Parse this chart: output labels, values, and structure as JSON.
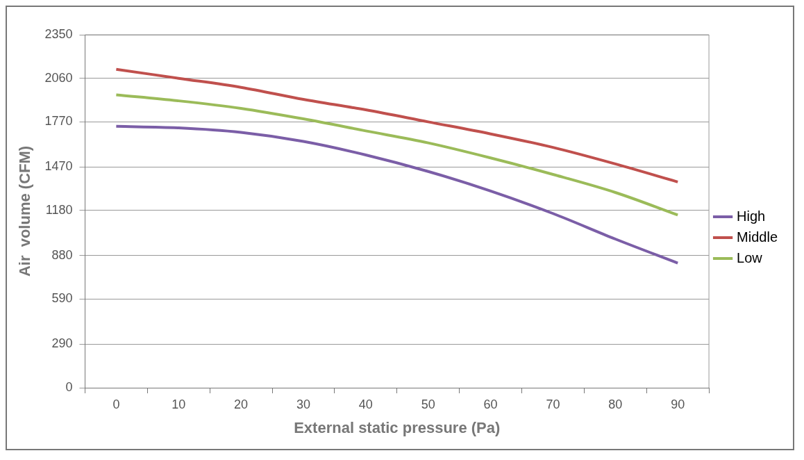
{
  "chart_data": {
    "type": "line",
    "xlabel": "External static pressure (Pa)",
    "ylabel": "Air  volume (CFM)",
    "categories": [
      "0",
      "10",
      "20",
      "30",
      "40",
      "50",
      "60",
      "70",
      "80",
      "90"
    ],
    "series": [
      {
        "name": "High",
        "color": "#7b5ea7",
        "values": [
          1740,
          1730,
          1700,
          1640,
          1550,
          1440,
          1310,
          1160,
          990,
          830
        ]
      },
      {
        "name": "Middle",
        "color": "#c0504d",
        "values": [
          2120,
          2060,
          2000,
          1920,
          1850,
          1770,
          1690,
          1600,
          1490,
          1370
        ]
      },
      {
        "name": "Low",
        "color": "#9bbb59",
        "values": [
          1950,
          1910,
          1860,
          1790,
          1710,
          1630,
          1530,
          1420,
          1300,
          1150
        ]
      }
    ],
    "ylim": [
      0,
      2350
    ],
    "yticks": [
      0,
      290,
      590,
      880,
      1180,
      1470,
      1770,
      2060,
      2350
    ],
    "grid": "y",
    "legend": "right",
    "marker": "none",
    "line_style": "solid"
  }
}
